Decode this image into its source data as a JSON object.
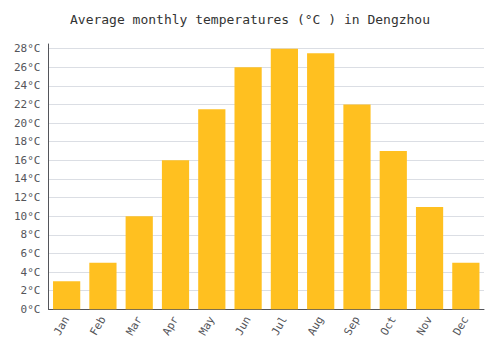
{
  "chart_data": {
    "type": "bar",
    "title": "Average monthly temperatures (°C ) in Dengzhou",
    "categories": [
      "Jan",
      "Feb",
      "Mar",
      "Apr",
      "May",
      "Jun",
      "Jul",
      "Aug",
      "Sep",
      "Oct",
      "Nov",
      "Dec"
    ],
    "values": [
      3,
      5,
      10,
      16,
      21.5,
      26,
      28,
      27.5,
      22,
      17,
      11,
      5
    ],
    "color": "#FFC020",
    "ylim": [
      0,
      28.5
    ],
    "yticks": [
      {
        "value": 0,
        "label": "0°C"
      },
      {
        "value": 2,
        "label": "2°C"
      },
      {
        "value": 4,
        "label": "4°C"
      },
      {
        "value": 6,
        "label": "6°C"
      },
      {
        "value": 8,
        "label": "8°C"
      },
      {
        "value": 10,
        "label": "10°C"
      },
      {
        "value": 12,
        "label": "12°C"
      },
      {
        "value": 14,
        "label": "14°C"
      },
      {
        "value": 16,
        "label": "16°C"
      },
      {
        "value": 18,
        "label": "18°C"
      },
      {
        "value": 20,
        "label": "20°C"
      },
      {
        "value": 22,
        "label": "22°C"
      },
      {
        "value": 24,
        "label": "24°C"
      },
      {
        "value": 26,
        "label": "26°C"
      },
      {
        "value": 28,
        "label": "28°C"
      }
    ],
    "grid": true
  }
}
